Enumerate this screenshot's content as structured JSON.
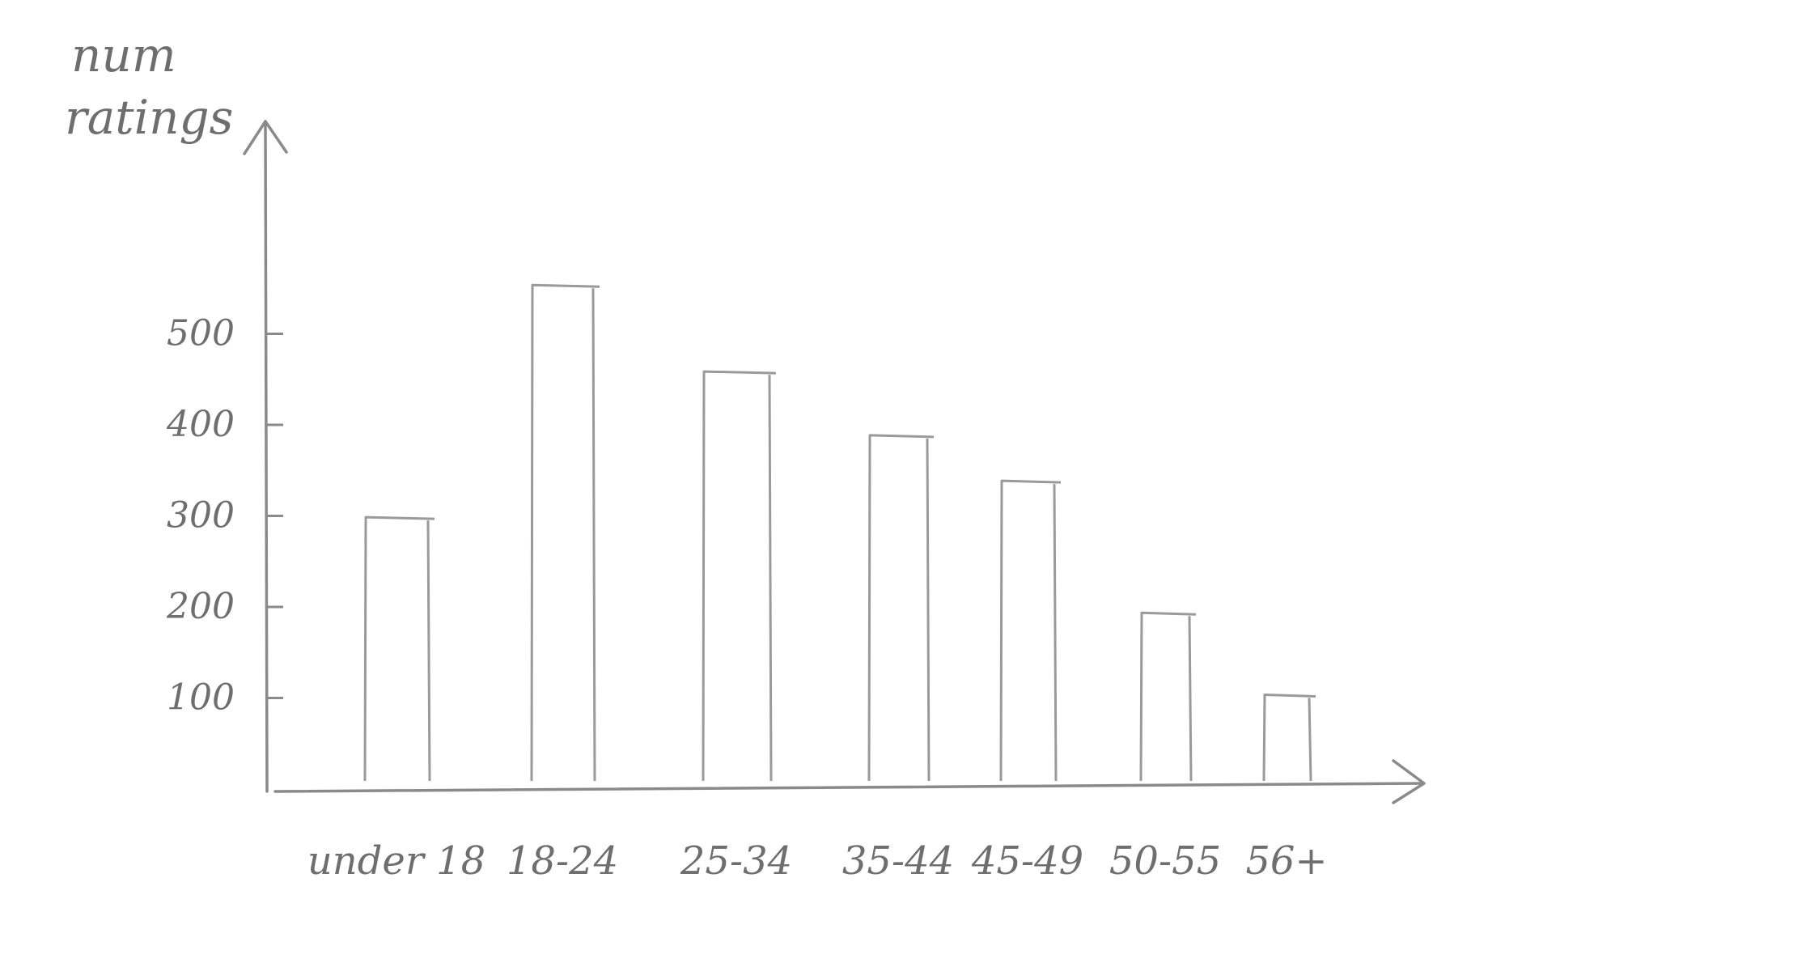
{
  "chart_data": {
    "type": "bar",
    "ylabel": "num ratings",
    "xlabel": "",
    "categories": [
      "under 18",
      "18-24",
      "25-34",
      "35-44",
      "45-49",
      "50-55",
      "56+"
    ],
    "values": [
      295,
      550,
      455,
      385,
      335,
      190,
      100
    ],
    "yticks": [
      100,
      200,
      300,
      400,
      500
    ],
    "ytick_labels": [
      "100",
      "200",
      "300",
      "400",
      "500"
    ],
    "ylim": [
      0,
      600
    ],
    "grid": false,
    "legend": "none"
  }
}
